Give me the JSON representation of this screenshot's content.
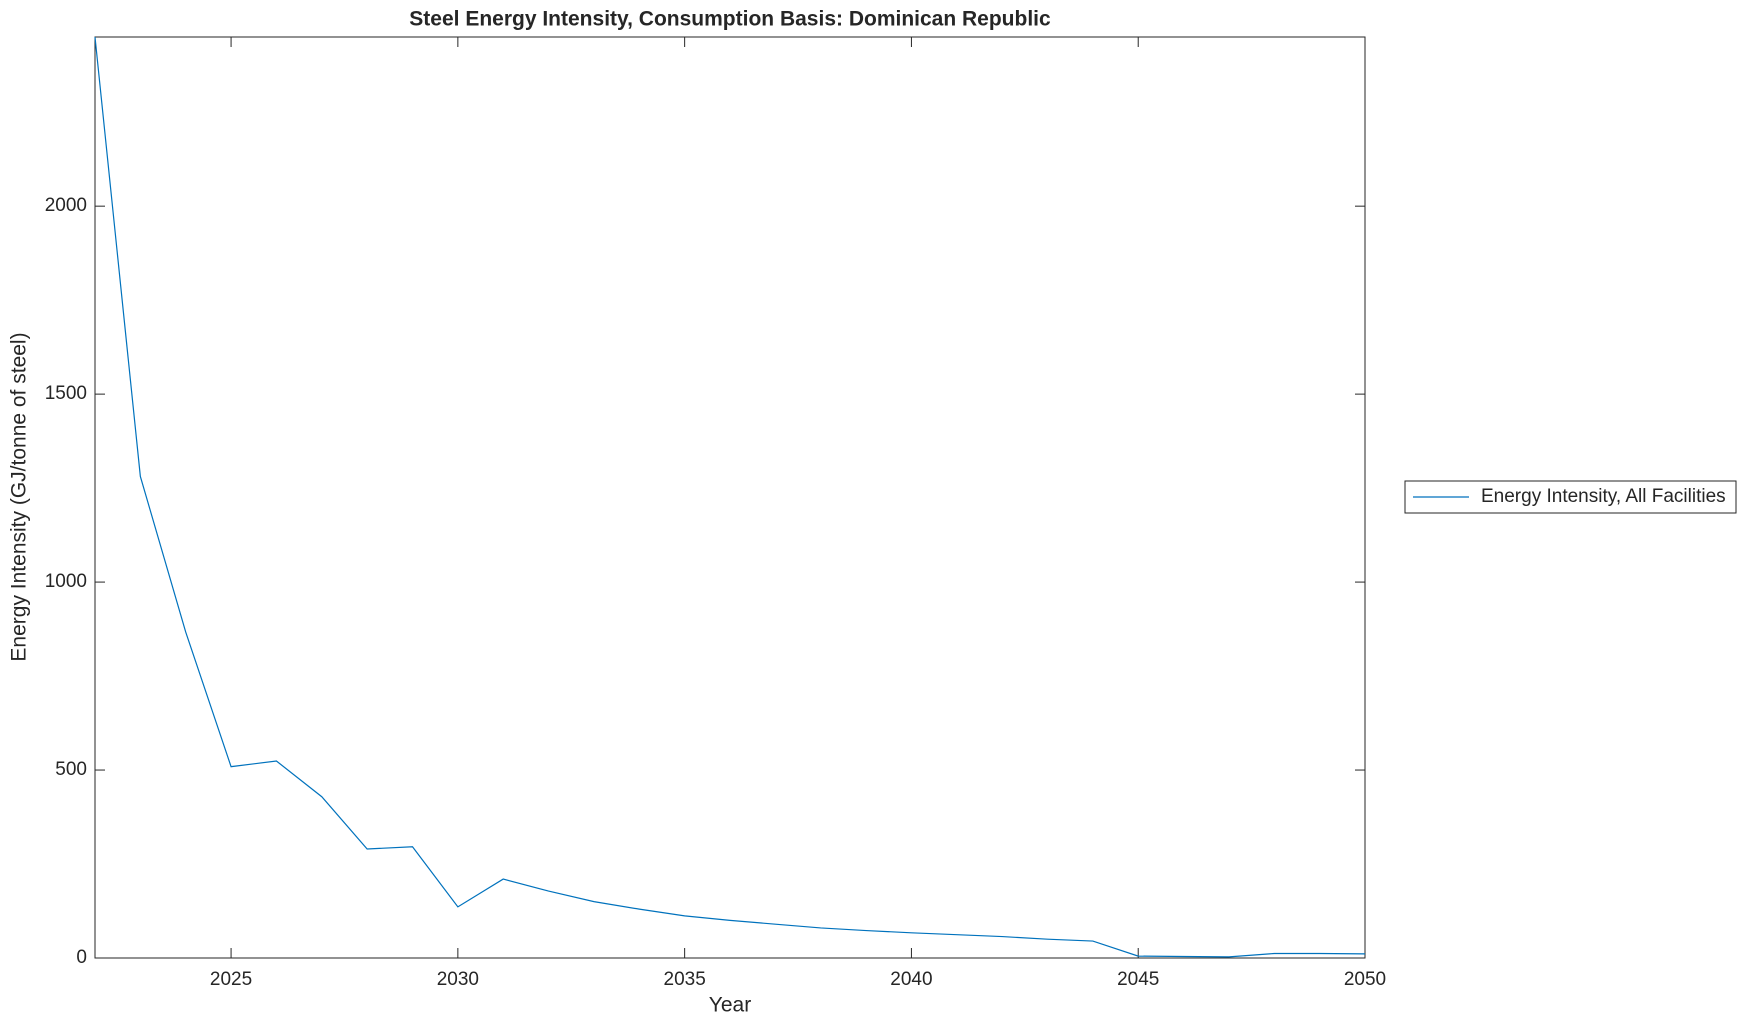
{
  "chart_data": {
    "type": "line",
    "title": "Steel Energy Intensity, Consumption Basis: Dominican Republic",
    "x_label": "Year",
    "y_label": "Energy Intensity (GJ/tonne of steel)",
    "x": [
      2022,
      2023,
      2024,
      2025,
      2026,
      2027,
      2028,
      2029,
      2030,
      2031,
      2032,
      2033,
      2034,
      2035,
      2036,
      2037,
      2038,
      2039,
      2040,
      2041,
      2042,
      2043,
      2044,
      2045,
      2046,
      2047,
      2048,
      2049,
      2050
    ],
    "series": [
      {
        "name": "Energy Intensity, All Facilities",
        "color": "#0072bd",
        "values": [
          2450,
          1281,
          867,
          509,
          524,
          429,
          290,
          296,
          136,
          210,
          178,
          150,
          130,
          112,
          100,
          90,
          80,
          73,
          67,
          62,
          57,
          50,
          45,
          5,
          4,
          3,
          12,
          12,
          11
        ]
      }
    ],
    "xlim": [
      2022,
      2050
    ],
    "xticks": [
      2025,
      2030,
      2035,
      2040,
      2045,
      2050
    ],
    "ylim": [
      0,
      2450
    ],
    "yticks": [
      0,
      500,
      1000,
      1500,
      2000
    ],
    "legend_position": "right"
  }
}
